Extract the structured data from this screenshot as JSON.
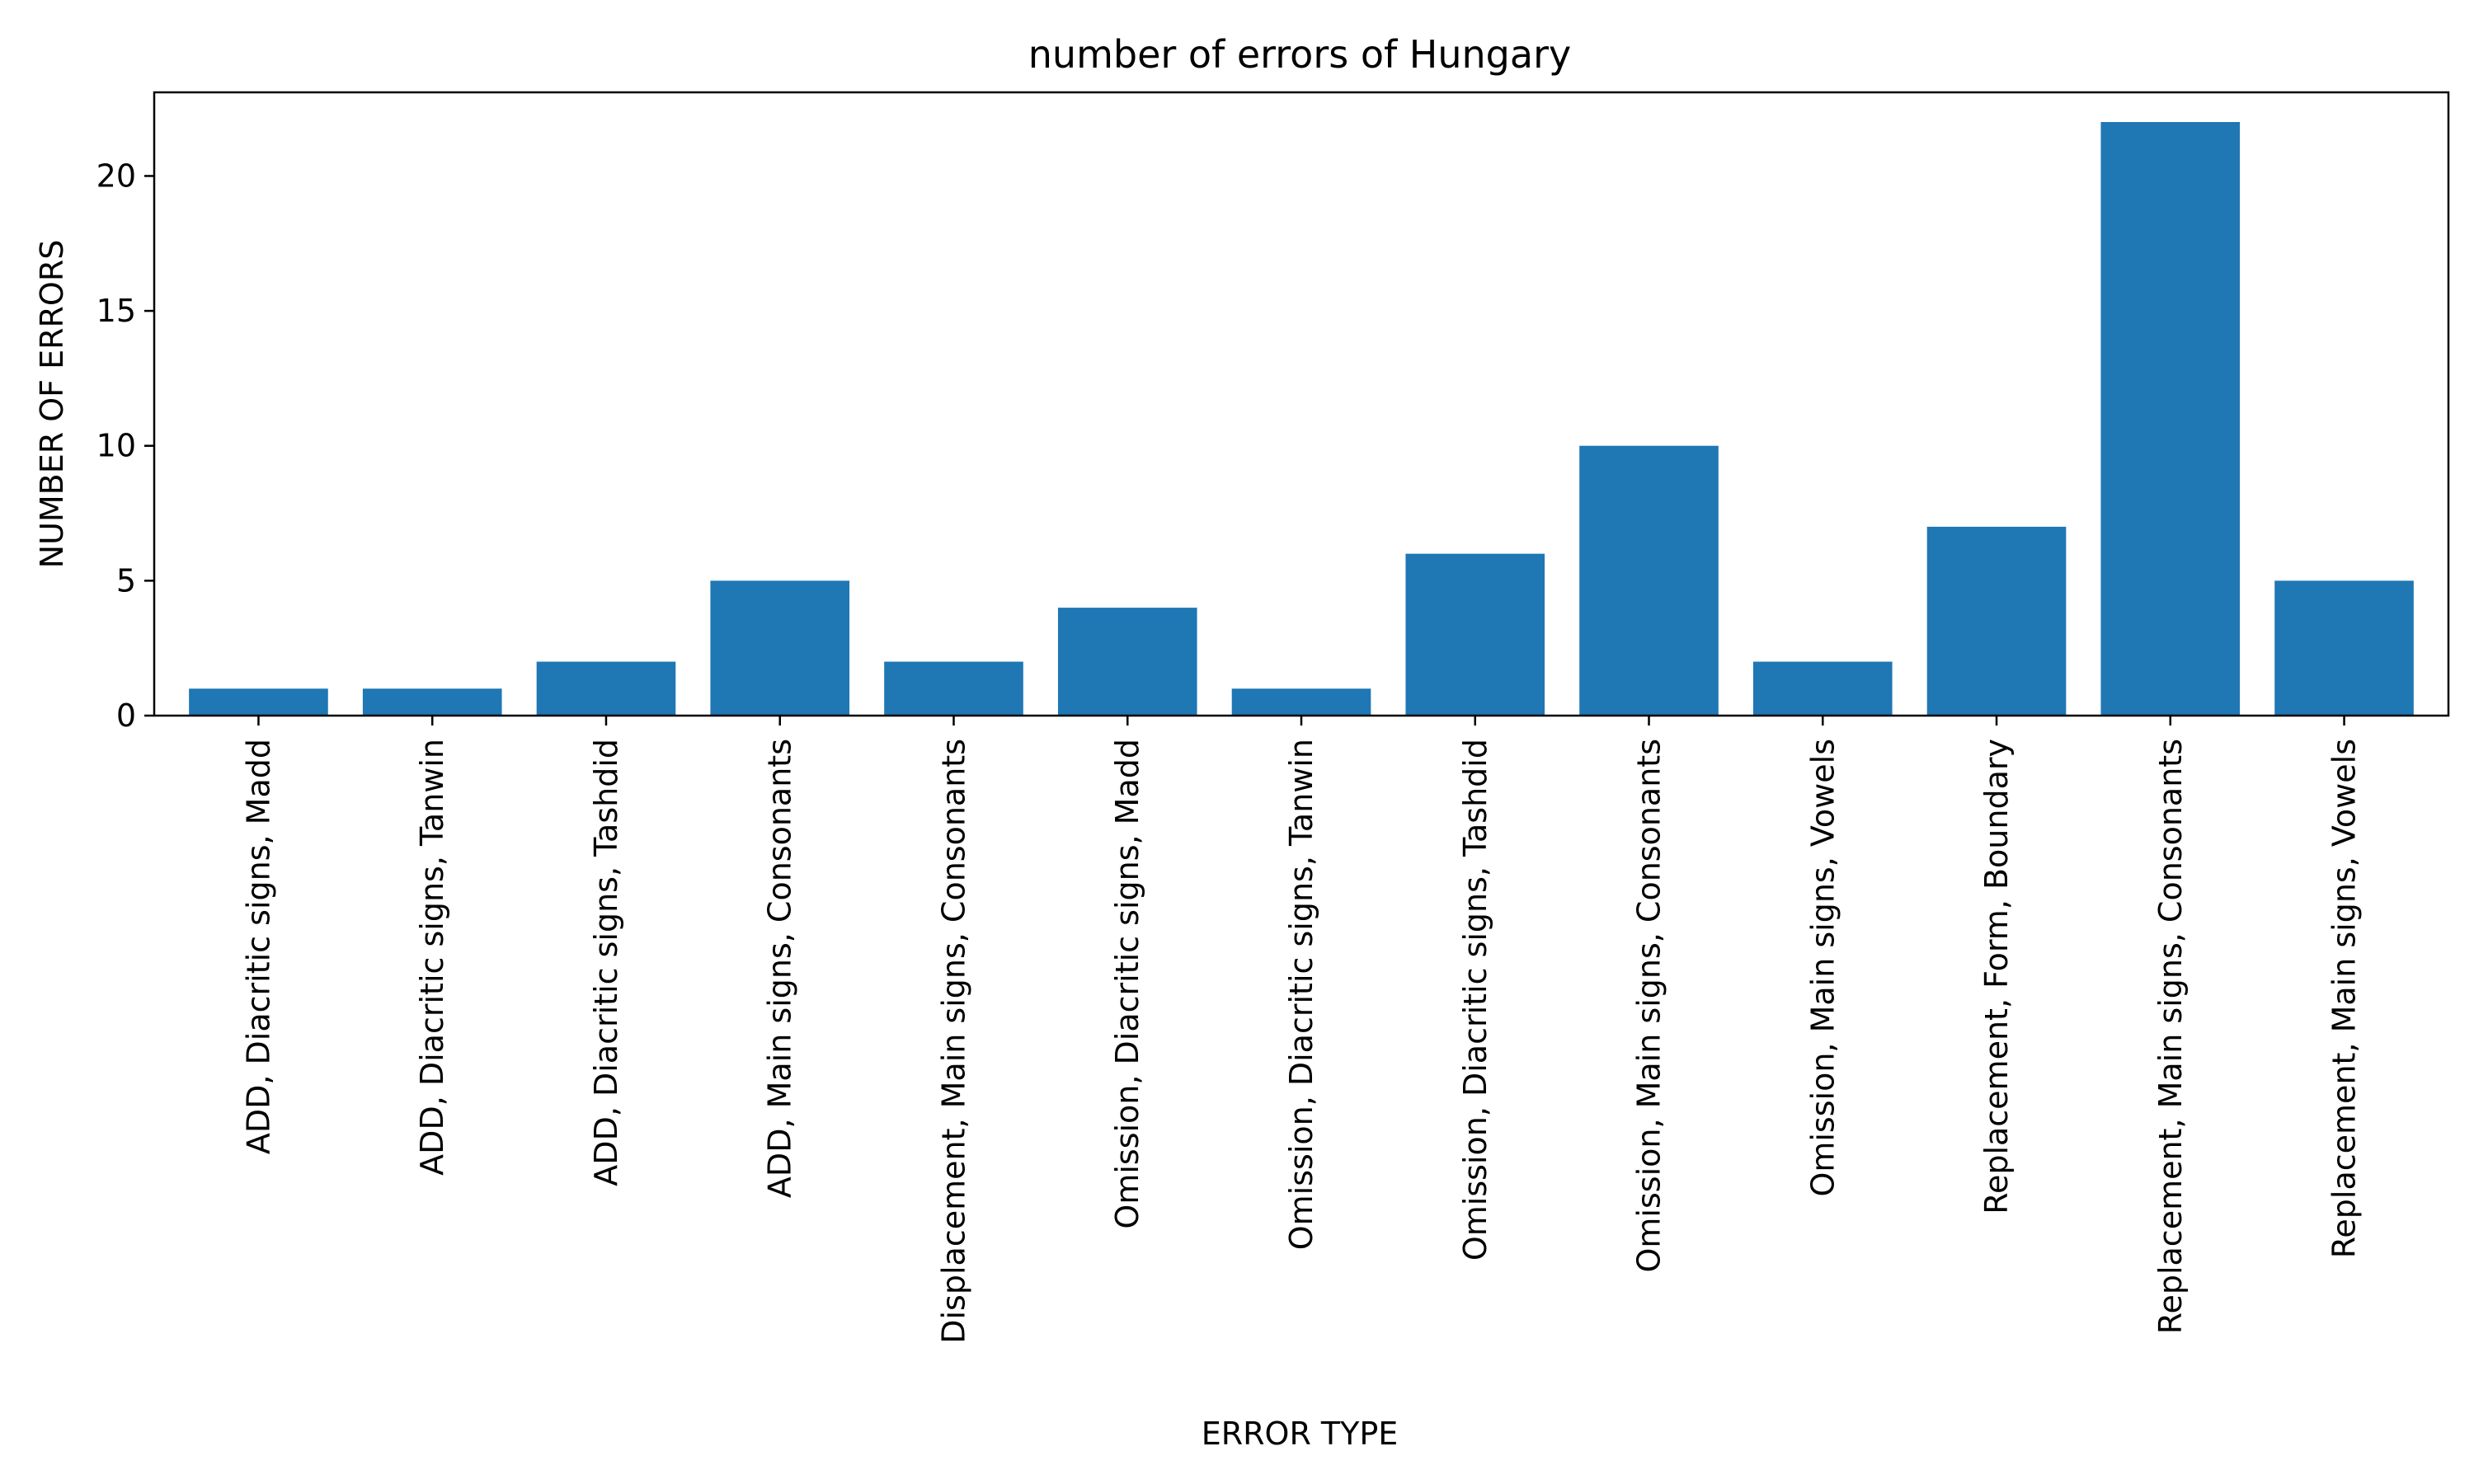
{
  "chart_data": {
    "type": "bar",
    "title": "number of errors of Hungary",
    "xlabel": "ERROR TYPE",
    "ylabel": "NUMBER OF ERRORS",
    "categories": [
      "ADD, Diacritic signs, Madd",
      "ADD, Diacritic signs, Tanwin",
      "ADD, Diacritic signs, Tashdid",
      "ADD, Main signs, Consonants",
      "Displacement, Main signs, Consonants",
      "Omission, Diacritic signs, Madd",
      "Omission, Diacritic signs, Tanwin",
      "Omission, Diacritic signs, Tashdid",
      "Omission, Main signs, Consonants",
      "Omission, Main signs, Vowels",
      "Replacement, Form, Boundary",
      "Replacement, Main signs, Consonants",
      "Replacement, Main signs, Vowels"
    ],
    "values": [
      1,
      1,
      2,
      5,
      2,
      4,
      1,
      6,
      10,
      2,
      7,
      22,
      5
    ],
    "ylim": [
      0,
      23.1
    ],
    "yticks": [
      0,
      5,
      10,
      15,
      20
    ],
    "bar_color": "#1f77b4",
    "grid": false,
    "legend": "none"
  }
}
